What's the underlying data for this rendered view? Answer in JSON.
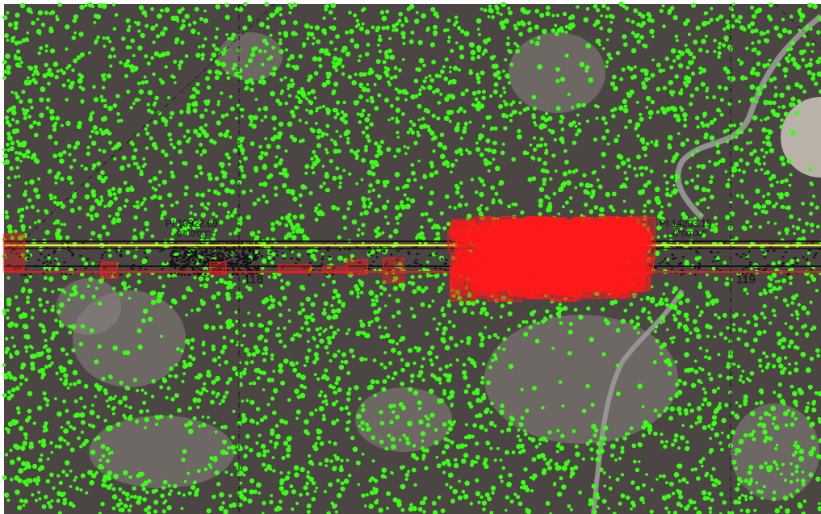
{
  "map": {
    "colors": {
      "vegetation_points": "#39ff14",
      "ground_dark": "#4b4544",
      "ground_light": "#8c8581",
      "path": "#9a9a98",
      "conflict_boxes": "#ff1a1a",
      "centerline": "#f2ee2a",
      "boundary_red": "#e02020",
      "boundary_black": "#111111"
    },
    "labels": {
      "pi_left": "PI 13922.69",
      "angle_left": "0°00'00\"",
      "station_left": "118",
      "pi_right": "PI 14203.15",
      "angle_right": "-0°00'00\"",
      "station_right": "119"
    }
  }
}
